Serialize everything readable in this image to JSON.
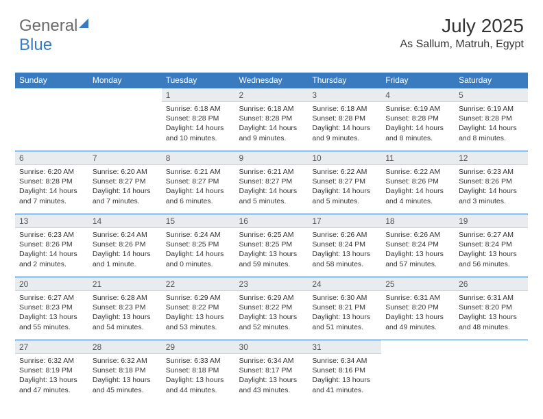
{
  "logo": {
    "word1": "General",
    "word2": "Blue"
  },
  "title": "July 2025",
  "location": "As Sallum, Matruh, Egypt",
  "colors": {
    "header_bg": "#3a7bbf",
    "header_fg": "#ffffff",
    "daynum_bg": "#e9ecef",
    "row_border": "#3a7bbf",
    "text": "#333333",
    "logo_gray": "#6b6b6b"
  },
  "weekdays": [
    "Sunday",
    "Monday",
    "Tuesday",
    "Wednesday",
    "Thursday",
    "Friday",
    "Saturday"
  ],
  "layout": {
    "first_weekday_index": 2,
    "days_in_month": 31
  },
  "days": {
    "1": {
      "sunrise": "6:18 AM",
      "sunset": "8:28 PM",
      "daylight": "14 hours and 10 minutes."
    },
    "2": {
      "sunrise": "6:18 AM",
      "sunset": "8:28 PM",
      "daylight": "14 hours and 9 minutes."
    },
    "3": {
      "sunrise": "6:18 AM",
      "sunset": "8:28 PM",
      "daylight": "14 hours and 9 minutes."
    },
    "4": {
      "sunrise": "6:19 AM",
      "sunset": "8:28 PM",
      "daylight": "14 hours and 8 minutes."
    },
    "5": {
      "sunrise": "6:19 AM",
      "sunset": "8:28 PM",
      "daylight": "14 hours and 8 minutes."
    },
    "6": {
      "sunrise": "6:20 AM",
      "sunset": "8:28 PM",
      "daylight": "14 hours and 7 minutes."
    },
    "7": {
      "sunrise": "6:20 AM",
      "sunset": "8:27 PM",
      "daylight": "14 hours and 7 minutes."
    },
    "8": {
      "sunrise": "6:21 AM",
      "sunset": "8:27 PM",
      "daylight": "14 hours and 6 minutes."
    },
    "9": {
      "sunrise": "6:21 AM",
      "sunset": "8:27 PM",
      "daylight": "14 hours and 5 minutes."
    },
    "10": {
      "sunrise": "6:22 AM",
      "sunset": "8:27 PM",
      "daylight": "14 hours and 5 minutes."
    },
    "11": {
      "sunrise": "6:22 AM",
      "sunset": "8:26 PM",
      "daylight": "14 hours and 4 minutes."
    },
    "12": {
      "sunrise": "6:23 AM",
      "sunset": "8:26 PM",
      "daylight": "14 hours and 3 minutes."
    },
    "13": {
      "sunrise": "6:23 AM",
      "sunset": "8:26 PM",
      "daylight": "14 hours and 2 minutes."
    },
    "14": {
      "sunrise": "6:24 AM",
      "sunset": "8:26 PM",
      "daylight": "14 hours and 1 minute."
    },
    "15": {
      "sunrise": "6:24 AM",
      "sunset": "8:25 PM",
      "daylight": "14 hours and 0 minutes."
    },
    "16": {
      "sunrise": "6:25 AM",
      "sunset": "8:25 PM",
      "daylight": "13 hours and 59 minutes."
    },
    "17": {
      "sunrise": "6:26 AM",
      "sunset": "8:24 PM",
      "daylight": "13 hours and 58 minutes."
    },
    "18": {
      "sunrise": "6:26 AM",
      "sunset": "8:24 PM",
      "daylight": "13 hours and 57 minutes."
    },
    "19": {
      "sunrise": "6:27 AM",
      "sunset": "8:24 PM",
      "daylight": "13 hours and 56 minutes."
    },
    "20": {
      "sunrise": "6:27 AM",
      "sunset": "8:23 PM",
      "daylight": "13 hours and 55 minutes."
    },
    "21": {
      "sunrise": "6:28 AM",
      "sunset": "8:23 PM",
      "daylight": "13 hours and 54 minutes."
    },
    "22": {
      "sunrise": "6:29 AM",
      "sunset": "8:22 PM",
      "daylight": "13 hours and 53 minutes."
    },
    "23": {
      "sunrise": "6:29 AM",
      "sunset": "8:22 PM",
      "daylight": "13 hours and 52 minutes."
    },
    "24": {
      "sunrise": "6:30 AM",
      "sunset": "8:21 PM",
      "daylight": "13 hours and 51 minutes."
    },
    "25": {
      "sunrise": "6:31 AM",
      "sunset": "8:20 PM",
      "daylight": "13 hours and 49 minutes."
    },
    "26": {
      "sunrise": "6:31 AM",
      "sunset": "8:20 PM",
      "daylight": "13 hours and 48 minutes."
    },
    "27": {
      "sunrise": "6:32 AM",
      "sunset": "8:19 PM",
      "daylight": "13 hours and 47 minutes."
    },
    "28": {
      "sunrise": "6:32 AM",
      "sunset": "8:18 PM",
      "daylight": "13 hours and 45 minutes."
    },
    "29": {
      "sunrise": "6:33 AM",
      "sunset": "8:18 PM",
      "daylight": "13 hours and 44 minutes."
    },
    "30": {
      "sunrise": "6:34 AM",
      "sunset": "8:17 PM",
      "daylight": "13 hours and 43 minutes."
    },
    "31": {
      "sunrise": "6:34 AM",
      "sunset": "8:16 PM",
      "daylight": "13 hours and 41 minutes."
    }
  },
  "labels": {
    "sunrise": "Sunrise:",
    "sunset": "Sunset:",
    "daylight": "Daylight:"
  }
}
